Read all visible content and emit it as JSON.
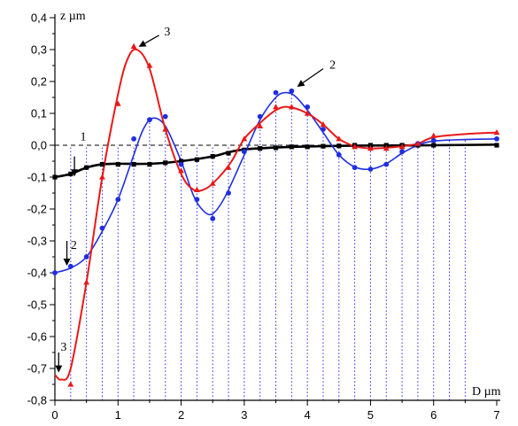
{
  "chart_data": {
    "type": "line",
    "xlabel": "D µm",
    "ylabel": "z µm",
    "xlim": [
      0,
      7
    ],
    "ylim": [
      -0.8,
      0.4
    ],
    "x_ticks": [
      "0",
      "1",
      "2",
      "3",
      "4",
      "5",
      "6",
      "7"
    ],
    "y_ticks": [
      "0,4",
      "0,3",
      "0,2",
      "0,1",
      "0,0",
      "-0,1",
      "-0,2",
      "-0,3",
      "-0,4",
      "-0,5",
      "-0,6",
      "-0,7",
      "-0,8"
    ],
    "grid": "vertical dotted lines",
    "callouts": [
      "1",
      "2",
      "2",
      "3",
      "3"
    ],
    "series": [
      {
        "label": "1",
        "color": "#000000",
        "marker": "square",
        "points": [
          [
            0.0,
            -0.1
          ],
          [
            0.25,
            -0.09
          ],
          [
            0.5,
            -0.07
          ],
          [
            0.75,
            -0.06
          ],
          [
            1.0,
            -0.06
          ],
          [
            1.25,
            -0.06
          ],
          [
            1.5,
            -0.06
          ],
          [
            1.75,
            -0.055
          ],
          [
            2.0,
            -0.05
          ],
          [
            2.25,
            -0.045
          ],
          [
            2.5,
            -0.035
          ],
          [
            2.75,
            -0.025
          ],
          [
            3.0,
            -0.015
          ],
          [
            3.25,
            -0.01
          ],
          [
            3.5,
            -0.008
          ],
          [
            3.75,
            -0.005
          ],
          [
            4.0,
            -0.005
          ],
          [
            4.25,
            -0.003
          ],
          [
            4.5,
            -0.002
          ],
          [
            4.75,
            0.0
          ],
          [
            5.0,
            0.0
          ],
          [
            5.25,
            0.0
          ],
          [
            5.5,
            0.0
          ],
          [
            5.75,
            0.0
          ],
          [
            6.0,
            0.0
          ],
          [
            7.0,
            0.0
          ]
        ],
        "curve": [
          [
            0,
            -0.1
          ],
          [
            0.25,
            -0.09
          ],
          [
            0.5,
            -0.07
          ],
          [
            0.75,
            -0.06
          ],
          [
            1.0,
            -0.058
          ],
          [
            1.5,
            -0.058
          ],
          [
            2.0,
            -0.05
          ],
          [
            2.5,
            -0.035
          ],
          [
            2.75,
            -0.022
          ],
          [
            3.0,
            -0.013
          ],
          [
            3.5,
            -0.007
          ],
          [
            4.0,
            -0.004
          ],
          [
            4.5,
            -0.002
          ],
          [
            5.0,
            -0.001
          ],
          [
            6.0,
            0.0
          ],
          [
            7.0,
            0.002
          ]
        ]
      },
      {
        "label": "2",
        "color": "#1f2ee0",
        "marker": "circle",
        "points": [
          [
            0.0,
            -0.4
          ],
          [
            0.25,
            -0.38
          ],
          [
            0.5,
            -0.35
          ],
          [
            0.75,
            -0.26
          ],
          [
            1.0,
            -0.17
          ],
          [
            1.25,
            0.02
          ],
          [
            1.5,
            0.08
          ],
          [
            1.75,
            0.09
          ],
          [
            2.0,
            -0.06
          ],
          [
            2.25,
            -0.17
          ],
          [
            2.5,
            -0.23
          ],
          [
            2.75,
            -0.15
          ],
          [
            3.0,
            -0.02
          ],
          [
            3.25,
            0.09
          ],
          [
            3.5,
            0.165
          ],
          [
            3.75,
            0.17
          ],
          [
            4.0,
            0.12
          ],
          [
            4.25,
            0.05
          ],
          [
            4.5,
            -0.03
          ],
          [
            4.75,
            -0.07
          ],
          [
            5.0,
            -0.075
          ],
          [
            5.25,
            -0.06
          ],
          [
            5.5,
            -0.02
          ],
          [
            5.75,
            0.005
          ],
          [
            6.0,
            0.015
          ],
          [
            7.0,
            0.02
          ]
        ],
        "curve": [
          [
            0,
            -0.4
          ],
          [
            0.25,
            -0.385
          ],
          [
            0.5,
            -0.35
          ],
          [
            0.75,
            -0.27
          ],
          [
            1.0,
            -0.17
          ],
          [
            1.25,
            -0.03
          ],
          [
            1.4,
            0.05
          ],
          [
            1.55,
            0.085
          ],
          [
            1.75,
            0.06
          ],
          [
            2.0,
            -0.05
          ],
          [
            2.2,
            -0.16
          ],
          [
            2.35,
            -0.205
          ],
          [
            2.5,
            -0.215
          ],
          [
            2.7,
            -0.16
          ],
          [
            3.0,
            -0.03
          ],
          [
            3.25,
            0.08
          ],
          [
            3.5,
            0.15
          ],
          [
            3.65,
            0.165
          ],
          [
            3.8,
            0.155
          ],
          [
            4.0,
            0.11
          ],
          [
            4.25,
            0.04
          ],
          [
            4.5,
            -0.03
          ],
          [
            4.75,
            -0.068
          ],
          [
            5.0,
            -0.075
          ],
          [
            5.25,
            -0.058
          ],
          [
            5.5,
            -0.025
          ],
          [
            5.75,
            0.0
          ],
          [
            6.0,
            0.013
          ],
          [
            6.5,
            0.018
          ],
          [
            7.0,
            0.02
          ]
        ]
      },
      {
        "label": "3",
        "color": "#e81919",
        "marker": "triangle",
        "points": [
          [
            0.25,
            -0.75
          ],
          [
            0.5,
            -0.43
          ],
          [
            0.75,
            -0.1
          ],
          [
            1.0,
            0.13
          ],
          [
            1.25,
            0.31
          ],
          [
            1.5,
            0.25
          ],
          [
            1.75,
            0.05
          ],
          [
            2.0,
            -0.08
          ],
          [
            2.25,
            -0.14
          ],
          [
            2.5,
            -0.12
          ],
          [
            2.75,
            -0.07
          ],
          [
            3.0,
            0.02
          ],
          [
            3.25,
            0.06
          ],
          [
            3.5,
            0.12
          ],
          [
            3.75,
            0.12
          ],
          [
            4.0,
            0.1
          ],
          [
            4.25,
            0.065
          ],
          [
            4.5,
            0.02
          ],
          [
            4.75,
            -0.005
          ],
          [
            5.0,
            -0.01
          ],
          [
            5.25,
            -0.01
          ],
          [
            5.5,
            -0.005
          ],
          [
            5.75,
            0.005
          ],
          [
            6.0,
            0.03
          ],
          [
            7.0,
            0.04
          ]
        ],
        "curve": [
          [
            0,
            -0.72
          ],
          [
            0.1,
            -0.735
          ],
          [
            0.25,
            -0.7
          ],
          [
            0.5,
            -0.43
          ],
          [
            0.75,
            -0.1
          ],
          [
            1.0,
            0.16
          ],
          [
            1.15,
            0.27
          ],
          [
            1.3,
            0.3
          ],
          [
            1.5,
            0.24
          ],
          [
            1.75,
            0.05
          ],
          [
            2.0,
            -0.09
          ],
          [
            2.2,
            -0.14
          ],
          [
            2.4,
            -0.135
          ],
          [
            2.6,
            -0.1
          ],
          [
            2.8,
            -0.05
          ],
          [
            3.0,
            0.02
          ],
          [
            3.25,
            0.07
          ],
          [
            3.5,
            0.11
          ],
          [
            3.7,
            0.12
          ],
          [
            4.0,
            0.1
          ],
          [
            4.25,
            0.065
          ],
          [
            4.5,
            0.02
          ],
          [
            4.75,
            -0.003
          ],
          [
            5.0,
            -0.01
          ],
          [
            5.25,
            -0.008
          ],
          [
            5.5,
            -0.003
          ],
          [
            5.75,
            0.005
          ],
          [
            6.0,
            0.025
          ],
          [
            6.5,
            0.035
          ],
          [
            7.0,
            0.04
          ]
        ]
      }
    ]
  }
}
